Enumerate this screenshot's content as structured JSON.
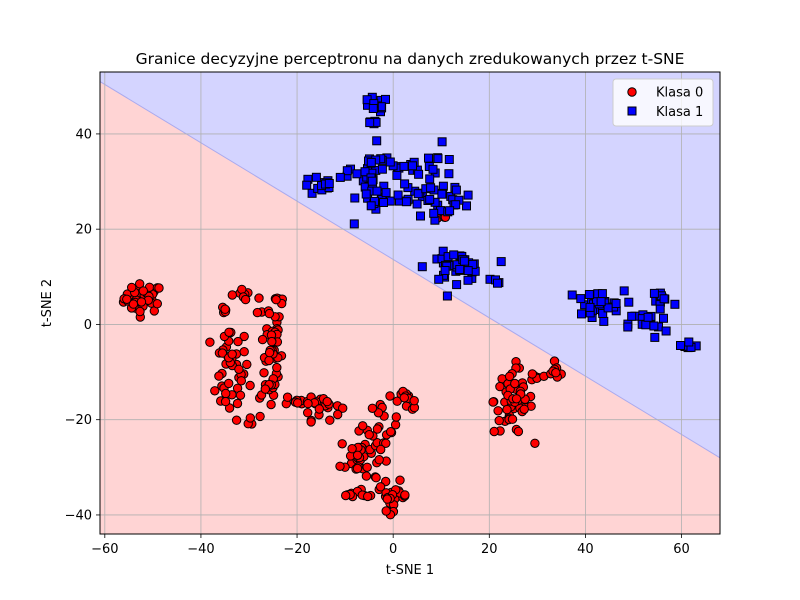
{
  "chart_data": {
    "type": "scatter",
    "title": "Granice decyzyjne perceptronu na danych zredukowanych przez t-SNE",
    "xlabel": "t-SNE 1",
    "ylabel": "t-SNE 2",
    "xlim": [
      -61,
      68
    ],
    "ylim": [
      -44,
      53
    ],
    "xticks": [
      -60,
      -40,
      -20,
      0,
      20,
      40,
      60
    ],
    "yticks": [
      -40,
      -20,
      0,
      20,
      40
    ],
    "xtick_labels": [
      "−60",
      "−40",
      "−20",
      "0",
      "20",
      "40",
      "60"
    ],
    "ytick_labels": [
      "−40",
      "−20",
      "0",
      "20",
      "40"
    ],
    "grid": true,
    "legend_position": "top-right",
    "decision_boundary": {
      "points": [
        [
          -61,
          51
        ],
        [
          68,
          -28
        ]
      ],
      "region_above": "Klasa 1",
      "region_below": "Klasa 0",
      "color_above": "#d4d4ff",
      "color_below": "#ffd4d4",
      "line_color": "#aaaaee"
    },
    "series": [
      {
        "name": "Klasa 0",
        "marker": "circle",
        "color": "#ff0000",
        "edge_color": "#000000",
        "clusters": [
          {
            "cx": -52,
            "cy": 5.5,
            "sx": 2,
            "sy": 1.5,
            "n": 45
          },
          {
            "cx": -34,
            "cy": -10,
            "sx": 2,
            "sy": 5,
            "n": 45
          },
          {
            "cx": -30,
            "cy": 6,
            "sx": 2,
            "sy": 0.7,
            "n": 8
          },
          {
            "cx": -35,
            "cy": 2.5,
            "sx": 0.4,
            "sy": 0.5,
            "n": 4
          },
          {
            "cx": -25.5,
            "cy": -5,
            "sx": 1.2,
            "sy": 7,
            "n": 50
          },
          {
            "cx": -23,
            "cy": 5,
            "sx": 1.5,
            "sy": 0.5,
            "n": 5
          },
          {
            "cx": -28,
            "cy": -20,
            "sx": 1,
            "sy": 1,
            "n": 4
          },
          {
            "cx": -20,
            "cy": -16,
            "sx": 2,
            "sy": 0.5,
            "n": 10
          },
          {
            "cx": -15,
            "cy": -17,
            "sx": 2,
            "sy": 1.5,
            "n": 22
          },
          {
            "cx": -7,
            "cy": -28,
            "sx": 2,
            "sy": 2.5,
            "n": 38
          },
          {
            "cx": -7,
            "cy": -35.5,
            "sx": 2,
            "sy": 0.5,
            "n": 12
          },
          {
            "cx": -2,
            "cy": -22,
            "sx": 1.5,
            "sy": 3,
            "n": 22
          },
          {
            "cx": 0,
            "cy": -36,
            "sx": 1.5,
            "sy": 1.5,
            "n": 25
          },
          {
            "cx": 3,
            "cy": -16,
            "sx": 1.5,
            "sy": 1,
            "n": 12
          },
          {
            "cx": 10.5,
            "cy": 22.5,
            "sx": 0.8,
            "sy": 0.8,
            "n": 4
          },
          {
            "cx": 25,
            "cy": -16,
            "sx": 2,
            "sy": 3.5,
            "n": 55
          },
          {
            "cx": 30,
            "cy": -11,
            "sx": 1.2,
            "sy": 0.6,
            "n": 6
          },
          {
            "cx": 34,
            "cy": -10,
            "sx": 1,
            "sy": 0.7,
            "n": 10
          }
        ]
      },
      {
        "name": "Klasa 1",
        "marker": "square",
        "color": "#0000ff",
        "edge_color": "#000000",
        "clusters": [
          {
            "cx": -4,
            "cy": 46,
            "sx": 1.5,
            "sy": 0.8,
            "n": 14
          },
          {
            "cx": -4.5,
            "cy": 42,
            "sx": 0.6,
            "sy": 0.5,
            "n": 5
          },
          {
            "cx": -15,
            "cy": 29,
            "sx": 2,
            "sy": 1,
            "n": 14
          },
          {
            "cx": -8,
            "cy": 30.5,
            "sx": 2,
            "sy": 1,
            "n": 10
          },
          {
            "cx": -4,
            "cy": 30,
            "sx": 1.8,
            "sy": 3.5,
            "n": 30
          },
          {
            "cx": -3,
            "cy": 25.5,
            "sx": 1,
            "sy": 0.6,
            "n": 6
          },
          {
            "cx": 4,
            "cy": 33,
            "sx": 3,
            "sy": 1,
            "n": 15
          },
          {
            "cx": 3,
            "cy": 28,
            "sx": 2,
            "sy": 1.5,
            "n": 12
          },
          {
            "cx": 9,
            "cy": 30,
            "sx": 2,
            "sy": 3.5,
            "n": 18
          },
          {
            "cx": 12,
            "cy": 26,
            "sx": 2.5,
            "sy": 2,
            "n": 16
          },
          {
            "cx": 13,
            "cy": 12,
            "sx": 3,
            "sy": 1.5,
            "n": 38
          },
          {
            "cx": 21.5,
            "cy": 9.5,
            "sx": 0.3,
            "sy": 0.7,
            "n": 3
          },
          {
            "cx": 42,
            "cy": 4,
            "sx": 3,
            "sy": 1.5,
            "n": 32
          },
          {
            "cx": 53,
            "cy": 0,
            "sx": 2,
            "sy": 1.5,
            "n": 18
          },
          {
            "cx": 56,
            "cy": 5,
            "sx": 1.5,
            "sy": 1.8,
            "n": 12
          },
          {
            "cx": 61,
            "cy": -4.5,
            "sx": 1.2,
            "sy": 0.6,
            "n": 8
          }
        ]
      }
    ]
  }
}
